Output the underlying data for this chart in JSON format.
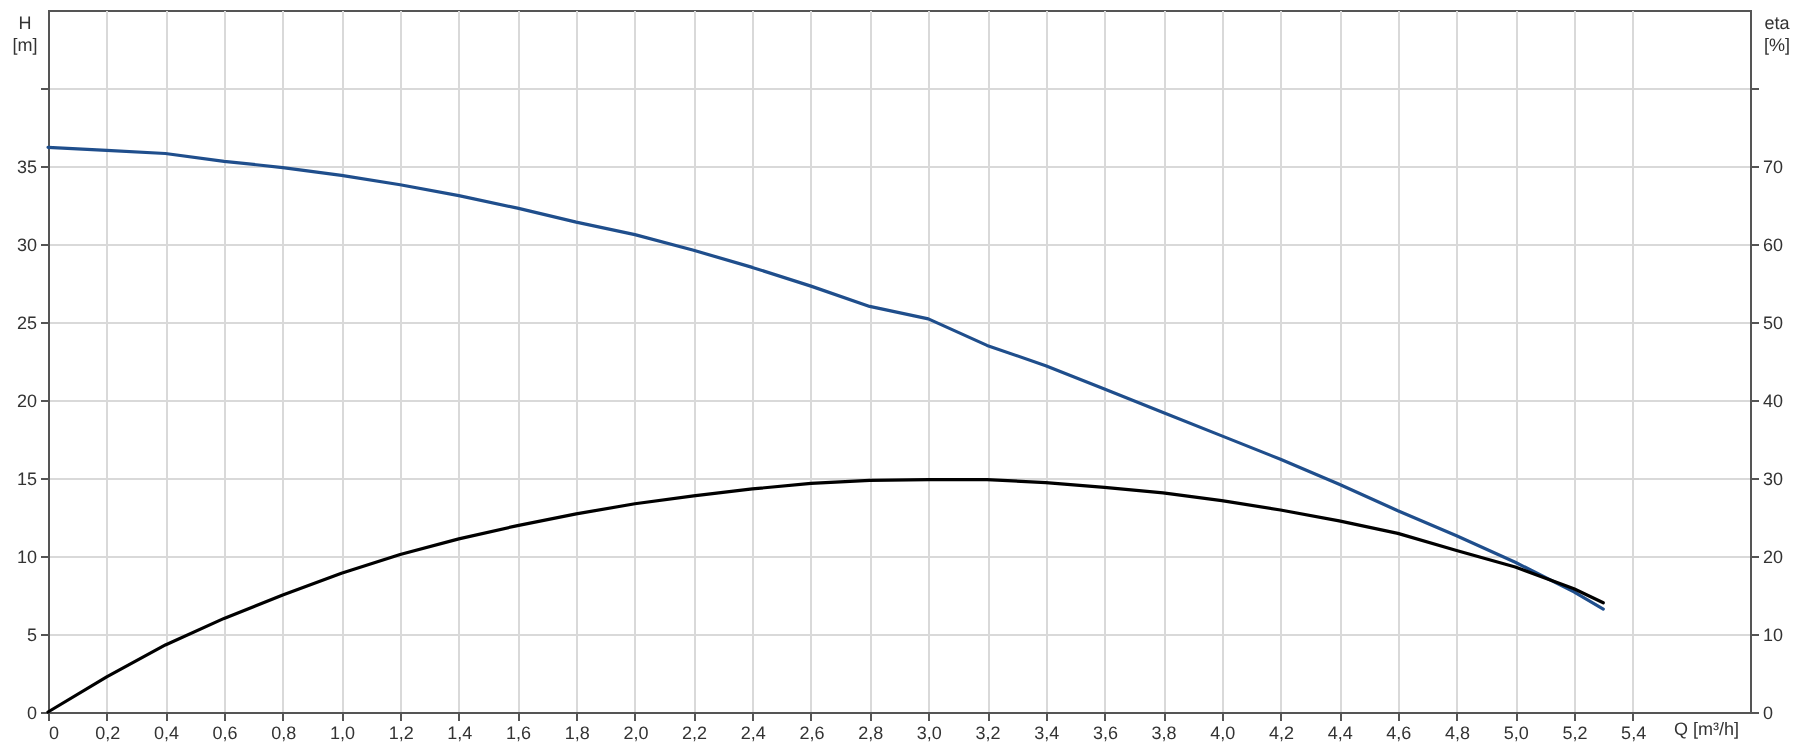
{
  "chart_data": {
    "type": "line",
    "xlabel": "Q [m³/h]",
    "ylabel": "H [m]",
    "y2label": "eta [%]",
    "x": [
      0,
      0.2,
      0.4,
      0.6,
      0.8,
      1.0,
      1.2,
      1.4,
      1.6,
      1.8,
      2.0,
      2.2,
      2.4,
      2.6,
      2.8,
      3.0,
      3.2,
      3.4,
      3.6,
      3.8,
      4.0,
      4.2,
      4.4,
      4.6,
      4.8,
      5.0,
      5.2,
      5.3
    ],
    "series": [
      {
        "color": "#1f4e8c",
        "values": [
          36.2,
          36.0,
          35.8,
          35.3,
          34.9,
          34.4,
          33.8,
          33.1,
          32.3,
          31.4,
          30.6,
          29.6,
          28.5,
          27.3,
          26.0,
          25.2,
          23.5,
          22.2,
          20.7,
          19.2,
          17.7,
          16.2,
          14.6,
          12.9,
          11.3,
          9.6,
          7.7,
          6.6
        ]
      },
      {
        "color": "#000000",
        "axis": "y2",
        "values": [
          0,
          4.5,
          8.6,
          12.0,
          15.0,
          17.8,
          20.2,
          22.2,
          23.9,
          25.4,
          26.7,
          27.7,
          28.6,
          29.3,
          29.7,
          29.8,
          29.8,
          29.4,
          28.8,
          28.1,
          27.1,
          25.9,
          24.5,
          22.9,
          20.7,
          18.6,
          15.8,
          14.0
        ]
      }
    ],
    "xlim": [
      0,
      5.8
    ],
    "xticks": [
      0,
      {
        "value": 0.2,
        "label": "0,2"
      },
      {
        "value": 0.4,
        "label": "0,4"
      },
      {
        "value": 0.6,
        "label": "0,6"
      },
      {
        "value": 0.8,
        "label": "0,8"
      },
      {
        "value": 1.0,
        "label": "1,0"
      },
      {
        "value": 1.2,
        "label": "1,2"
      },
      {
        "value": 1.4,
        "label": "1,4"
      },
      {
        "value": 1.6,
        "label": "1,6"
      },
      {
        "value": 1.8,
        "label": "1,8"
      },
      {
        "value": 2.0,
        "label": "2,0"
      },
      {
        "value": 2.2,
        "label": "2,2"
      },
      {
        "value": 2.4,
        "label": "2,4"
      },
      {
        "value": 2.6,
        "label": "2,6"
      },
      {
        "value": 2.8,
        "label": "2,8"
      },
      {
        "value": 3.0,
        "label": "3,0"
      },
      {
        "value": 3.2,
        "label": "3,2"
      },
      {
        "value": 3.4,
        "label": "3,4"
      },
      {
        "value": 3.6,
        "label": "3,6"
      },
      {
        "value": 3.8,
        "label": "3,8"
      },
      {
        "value": 4.0,
        "label": "4,0"
      },
      {
        "value": 4.2,
        "label": "4,2"
      },
      {
        "value": 4.4,
        "label": "4,4"
      },
      {
        "value": 4.6,
        "label": "4,6"
      },
      {
        "value": 4.8,
        "label": "4,8"
      },
      {
        "value": 5.0,
        "label": "5,0"
      },
      {
        "value": 5.2,
        "label": "5,2"
      },
      {
        "value": 5.4,
        "label": "5,4"
      }
    ],
    "ylim": [
      0,
      45
    ],
    "yticks": [
      0,
      5,
      10,
      15,
      20,
      25,
      30,
      35,
      {
        "value": 40,
        "label": null
      }
    ],
    "y2lim": [
      0,
      90
    ],
    "y2ticks": [
      0,
      10,
      20,
      30,
      40,
      50,
      60,
      70,
      {
        "value": 80,
        "label": null
      }
    ],
    "grid": true
  }
}
